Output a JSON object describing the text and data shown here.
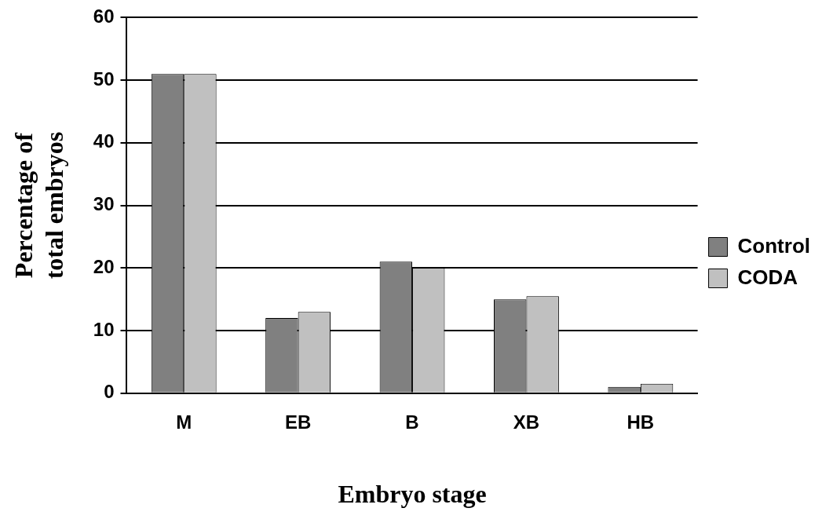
{
  "chart_data": {
    "type": "bar",
    "xlabel": "Embryo stage",
    "ylabel": "Percentage of total embryos",
    "categories": [
      "M",
      "EB",
      "B",
      "XB",
      "HB"
    ],
    "series": [
      {
        "name": "Control",
        "color": "#808080",
        "values": [
          51,
          12,
          21,
          15,
          1
        ]
      },
      {
        "name": "CODA",
        "color": "#c0c0c0",
        "values": [
          51,
          13,
          20,
          15.5,
          1.5
        ]
      }
    ],
    "ylim": [
      0,
      60
    ],
    "yticks": [
      0,
      10,
      20,
      30,
      40,
      50,
      60
    ],
    "grid": "y",
    "legend": "right"
  }
}
